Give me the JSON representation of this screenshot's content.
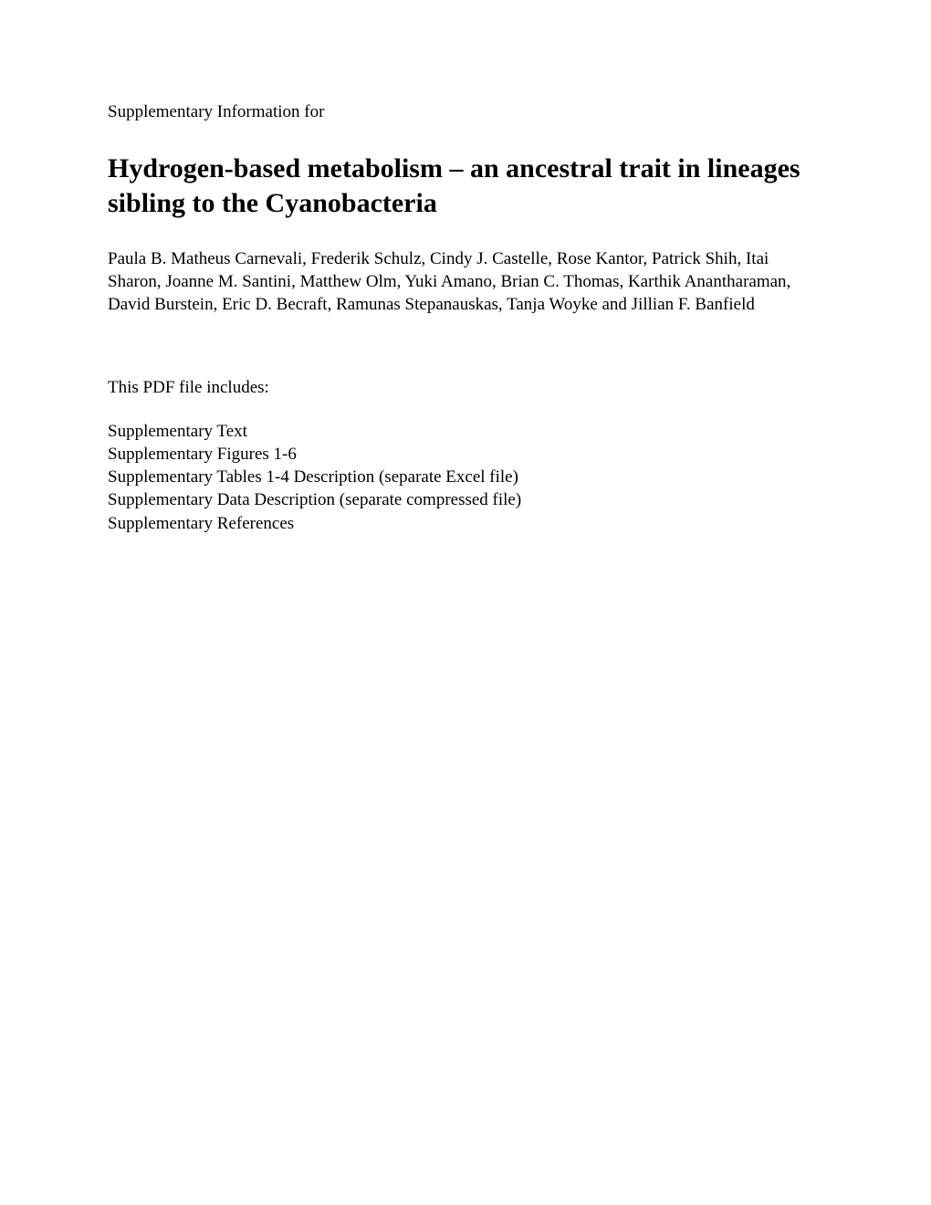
{
  "pretitle": "Supplementary Information for",
  "title": "Hydrogen-based metabolism – an ancestral trait in lineages sibling to the Cyanobacteria",
  "authors": "Paula B. Matheus Carnevali, Frederik Schulz, Cindy J. Castelle, Rose Kantor, Patrick Shih, Itai Sharon, Joanne M. Santini, Matthew Olm, Yuki Amano, Brian C. Thomas, Karthik Anantharaman, David Burstein, Eric D. Becraft, Ramunas Stepanauskas, Tanja Woyke and Jillian F. Banfield",
  "includes_label": "This PDF file includes:",
  "includes_items": [
    "Supplementary Text",
    "Supplementary Figures 1-6",
    "Supplementary Tables 1-4 Description (separate Excel file)",
    "Supplementary Data Description (separate compressed file)",
    "Supplementary References"
  ],
  "colors": {
    "background": "#ffffff",
    "text": "#000000"
  },
  "typography": {
    "body_font": "Times New Roman",
    "body_size_pt": 14,
    "title_size_pt": 22,
    "title_weight": "bold"
  }
}
